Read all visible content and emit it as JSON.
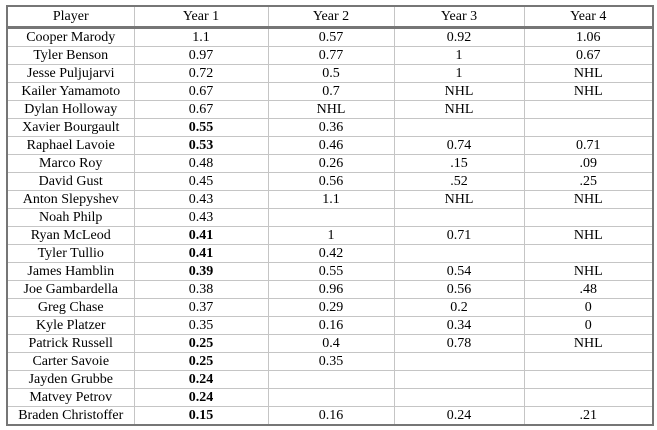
{
  "colors": {
    "outer_border": "#767676",
    "grid_line": "#c5c5c5",
    "text": "#000000",
    "background": "#ffffff"
  },
  "chart_data": {
    "type": "table",
    "columns": [
      "Player",
      "Year 1",
      "Year 2",
      "Year 3",
      "Year 4"
    ],
    "rows": [
      {
        "player": "Cooper Marody",
        "values": [
          "1.1",
          "0.57",
          "0.92",
          "1.06"
        ],
        "bold_year1": false
      },
      {
        "player": "Tyler Benson",
        "values": [
          "0.97",
          "0.77",
          "1",
          "0.67"
        ],
        "bold_year1": false
      },
      {
        "player": "Jesse Puljujarvi",
        "values": [
          "0.72",
          "0.5",
          "1",
          "NHL"
        ],
        "bold_year1": false
      },
      {
        "player": "Kailer Yamamoto",
        "values": [
          "0.67",
          "0.7",
          "NHL",
          "NHL"
        ],
        "bold_year1": false
      },
      {
        "player": "Dylan Holloway",
        "values": [
          "0.67",
          "NHL",
          "NHL",
          ""
        ],
        "bold_year1": false
      },
      {
        "player": "Xavier Bourgault",
        "values": [
          "0.55",
          "0.36",
          "",
          ""
        ],
        "bold_year1": true
      },
      {
        "player": "Raphael Lavoie",
        "values": [
          "0.53",
          "0.46",
          "0.74",
          "0.71"
        ],
        "bold_year1": true
      },
      {
        "player": "Marco Roy",
        "values": [
          "0.48",
          "0.26",
          ".15",
          ".09"
        ],
        "bold_year1": false
      },
      {
        "player": "David Gust",
        "values": [
          "0.45",
          "0.56",
          ".52",
          ".25"
        ],
        "bold_year1": false
      },
      {
        "player": "Anton Slepyshev",
        "values": [
          "0.43",
          "1.1",
          "NHL",
          "NHL"
        ],
        "bold_year1": false
      },
      {
        "player": "Noah Philp",
        "values": [
          "0.43",
          "",
          "",
          ""
        ],
        "bold_year1": false
      },
      {
        "player": "Ryan McLeod",
        "values": [
          "0.41",
          "1",
          "0.71",
          "NHL"
        ],
        "bold_year1": true
      },
      {
        "player": "Tyler Tullio",
        "values": [
          "0.41",
          "0.42",
          "",
          ""
        ],
        "bold_year1": true
      },
      {
        "player": "James Hamblin",
        "values": [
          "0.39",
          "0.55",
          "0.54",
          "NHL"
        ],
        "bold_year1": true
      },
      {
        "player": "Joe Gambardella",
        "values": [
          "0.38",
          "0.96",
          "0.56",
          ".48"
        ],
        "bold_year1": false
      },
      {
        "player": "Greg Chase",
        "values": [
          "0.37",
          "0.29",
          "0.2",
          "0"
        ],
        "bold_year1": false
      },
      {
        "player": "Kyle Platzer",
        "values": [
          "0.35",
          "0.16",
          "0.34",
          "0"
        ],
        "bold_year1": false
      },
      {
        "player": "Patrick Russell",
        "values": [
          "0.25",
          "0.4",
          "0.78",
          "NHL"
        ],
        "bold_year1": true
      },
      {
        "player": "Carter Savoie",
        "values": [
          "0.25",
          "0.35",
          "",
          ""
        ],
        "bold_year1": true
      },
      {
        "player": "Jayden Grubbe",
        "values": [
          "0.24",
          "",
          "",
          ""
        ],
        "bold_year1": true
      },
      {
        "player": "Matvey Petrov",
        "values": [
          "0.24",
          "",
          "",
          ""
        ],
        "bold_year1": true
      },
      {
        "player": "Braden Christoffer",
        "values": [
          "0.15",
          "0.16",
          "0.24",
          ".21"
        ],
        "bold_year1": true
      }
    ]
  }
}
